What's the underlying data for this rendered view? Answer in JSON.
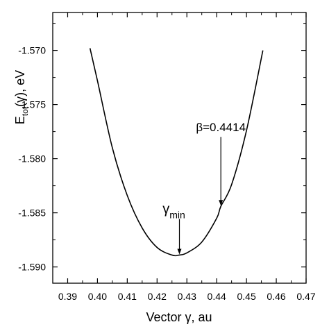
{
  "chart_data": {
    "type": "line",
    "title": "",
    "xlabel": "Vector γ, au",
    "ylabel": {
      "main": "E",
      "sub": "tot",
      "rest": "(γ), eV"
    },
    "xlim": [
      0.385,
      0.47
    ],
    "ylim": [
      -1.5915,
      -1.5665
    ],
    "x_ticks": [
      0.39,
      0.4,
      0.41,
      0.42,
      0.43,
      0.44,
      0.45,
      0.46,
      0.47
    ],
    "x_tick_labels": [
      "0.39",
      "0.40",
      "0.41",
      "0.42",
      "0.43",
      "0.44",
      "0.45",
      "0.46",
      "0.47"
    ],
    "y_ticks": [
      -1.57,
      -1.575,
      -1.58,
      -1.585,
      -1.59
    ],
    "y_tick_labels": [
      "-1.570",
      "-1.575",
      "-1.580",
      "-1.585",
      "-1.590"
    ],
    "grid": false,
    "series": [
      {
        "x": [
          0.3975,
          0.4,
          0.405,
          0.41,
          0.415,
          0.42,
          0.425,
          0.4275,
          0.43,
          0.435,
          0.44,
          0.4414,
          0.445,
          0.45,
          0.4555
        ],
        "y": [
          -1.5698,
          -1.5728,
          -1.579,
          -1.5834,
          -1.5864,
          -1.5882,
          -1.5889,
          -1.5889,
          -1.5887,
          -1.5877,
          -1.5855,
          -1.5844,
          -1.5824,
          -1.5774,
          -1.57
        ]
      }
    ],
    "annotations": [
      {
        "label": "γ",
        "sub": "min",
        "x": 0.4275,
        "y": -1.5889
      },
      {
        "label": "β=0.4414",
        "sub": "",
        "x": 0.4414,
        "y": -1.5844
      }
    ],
    "stroke_color": "#000000"
  }
}
